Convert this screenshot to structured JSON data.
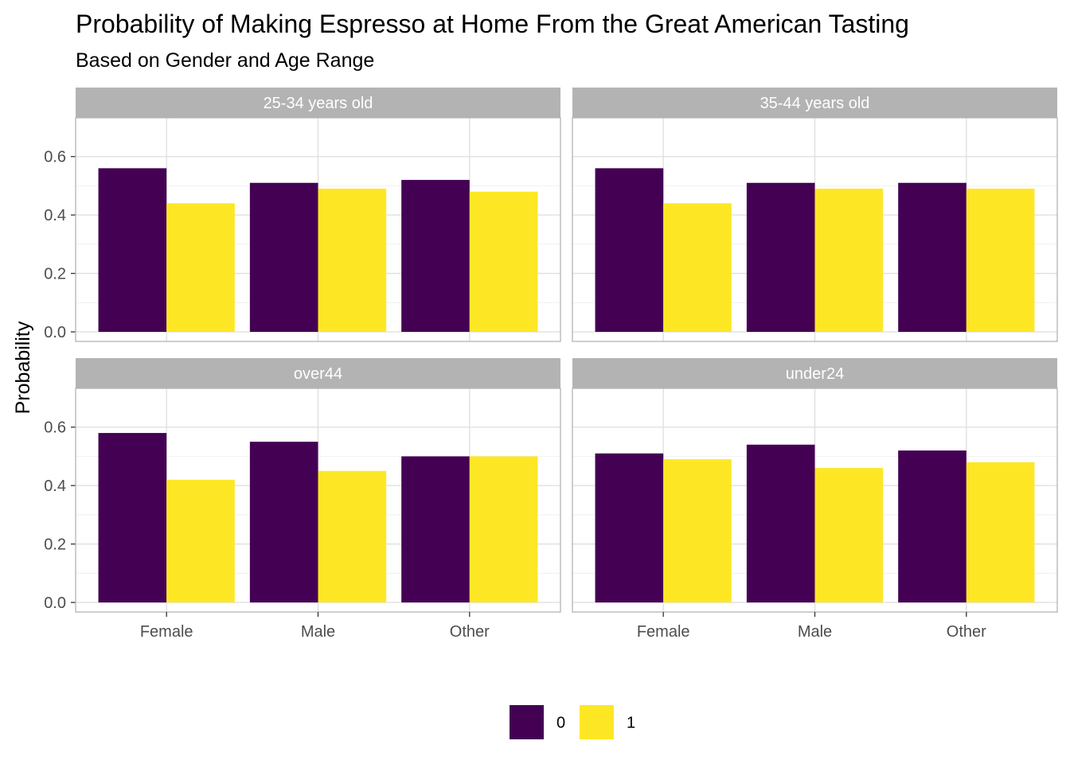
{
  "chart_data": {
    "type": "bar",
    "title": "Probability of Making Espresso at Home From the Great American Tasting",
    "subtitle": "Based on Gender and Age Range",
    "xlabel": "",
    "ylabel": "Probability",
    "ylim": [
      0,
      0.7
    ],
    "yticks": [
      "0.0",
      "0.2",
      "0.4",
      "0.6"
    ],
    "grid": true,
    "legend_position": "bottom",
    "categories": [
      "Female",
      "Male",
      "Other"
    ],
    "legend": [
      {
        "label": "0",
        "color": "#440154"
      },
      {
        "label": "1",
        "color": "#FDE725"
      }
    ],
    "panels": [
      {
        "label": "25-34 years old",
        "series": [
          {
            "name": "0",
            "values": [
              0.56,
              0.51,
              0.52
            ]
          },
          {
            "name": "1",
            "values": [
              0.44,
              0.49,
              0.48
            ]
          }
        ]
      },
      {
        "label": "35-44 years old",
        "series": [
          {
            "name": "0",
            "values": [
              0.56,
              0.51,
              0.51
            ]
          },
          {
            "name": "1",
            "values": [
              0.44,
              0.49,
              0.49
            ]
          }
        ]
      },
      {
        "label": "over44",
        "series": [
          {
            "name": "0",
            "values": [
              0.58,
              0.55,
              0.5
            ]
          },
          {
            "name": "1",
            "values": [
              0.42,
              0.45,
              0.5
            ]
          }
        ]
      },
      {
        "label": "under24",
        "series": [
          {
            "name": "0",
            "values": [
              0.51,
              0.54,
              0.52
            ]
          },
          {
            "name": "1",
            "values": [
              0.49,
              0.46,
              0.48
            ]
          }
        ]
      }
    ]
  }
}
